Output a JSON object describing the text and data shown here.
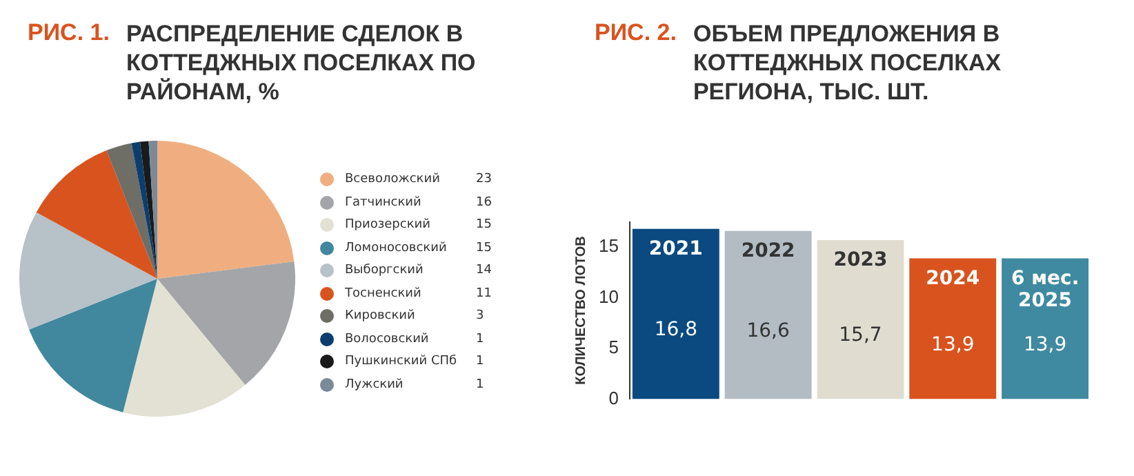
{
  "chart_data": [
    {
      "type": "pie",
      "subtitle": "РИС. 1.",
      "title": "РАСПРЕДЕЛЕНИЕ СДЕЛОК В КОТТЕДЖНЫХ ПОСЕЛКАХ ПО РАЙОНАМ, %",
      "categories": [
        "Всеволожский",
        "Гатчинский",
        "Приозерский",
        "Ломоносовский",
        "Выборгский",
        "Тосненский",
        "Кировский",
        "Волосовский",
        "Пушкинский СПб",
        "Лужский"
      ],
      "values": [
        23,
        16,
        15,
        15,
        14,
        11,
        3,
        1,
        1,
        1
      ],
      "colors": [
        "#f0ae80",
        "#a3a5a8",
        "#e3e1d3",
        "#41879e",
        "#b6c1c8",
        "#d9531e",
        "#6e6e66",
        "#0b3e6e",
        "#1a1a1a",
        "#7a8a99"
      ],
      "legend": "right",
      "data_labels": true
    },
    {
      "type": "bar",
      "subtitle": "РИС. 2.",
      "title": "ОБЪЕМ ПРЕДЛОЖЕНИЯ В КОТТЕДЖНЫХ ПОСЕЛКАХ РЕГИОНА, ТЫС. ШТ.",
      "ylabel": "КОЛИЧЕСТВО ЛОТОВ",
      "categories": [
        "2021",
        "2022",
        "2023",
        "2024",
        "6 мес. 2025"
      ],
      "values": [
        16.8,
        16.6,
        15.7,
        13.9,
        13.9
      ],
      "value_labels": [
        "16,8",
        "16,6",
        "15,7",
        "13,9",
        "13,9"
      ],
      "colors": [
        "#0a4a80",
        "#b3bcc3",
        "#e0ddd0",
        "#d9531e",
        "#3f8aa0"
      ],
      "ylim": [
        0,
        17.5
      ],
      "yticks": [
        0,
        5,
        10,
        15
      ],
      "tick_labels": "y",
      "grid": false,
      "legend": false
    }
  ]
}
